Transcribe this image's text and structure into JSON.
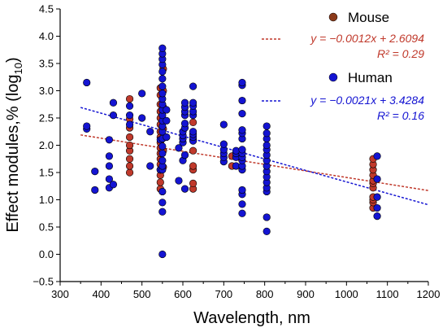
{
  "chart_data": {
    "type": "scatter",
    "xlabel": "Wavelength, nm",
    "ylabel_prefix": "Effect modules,% (log",
    "ylabel_sub": "10",
    "ylabel_suffix": ")",
    "xlim": [
      300,
      1200
    ],
    "ylim": [
      -0.5,
      4.5
    ],
    "xticks": [
      "300",
      "400",
      "500",
      "600",
      "700",
      "800",
      "900",
      "1000",
      "1100",
      "1200"
    ],
    "yticks": [
      "−0.5",
      "0.0",
      "0.5",
      "1.0",
      "1.5",
      "2.0",
      "2.5",
      "3.0",
      "3.5",
      "4.0",
      "4.5"
    ],
    "grid": false,
    "legend_position": "top-right",
    "series": [
      {
        "name": "Mouse",
        "color": "#c0392b",
        "trend": {
          "equation": "y = −0.0012x + 2.6094",
          "r2": "R² = 0.29",
          "slope": -0.0012,
          "intercept": 2.6094,
          "color": "#c0392b"
        },
        "points": [
          [
            470,
            1.5
          ],
          [
            470,
            1.62
          ],
          [
            470,
            1.75
          ],
          [
            470,
            1.9
          ],
          [
            470,
            2.0
          ],
          [
            470,
            2.15
          ],
          [
            470,
            2.32
          ],
          [
            470,
            2.48
          ],
          [
            470,
            2.85
          ],
          [
            545,
            1.2
          ],
          [
            545,
            1.32
          ],
          [
            545,
            1.45
          ],
          [
            545,
            1.55
          ],
          [
            545,
            1.65
          ],
          [
            545,
            1.75
          ],
          [
            545,
            1.85
          ],
          [
            545,
            1.95
          ],
          [
            545,
            2.05
          ],
          [
            545,
            2.15
          ],
          [
            545,
            2.25
          ],
          [
            545,
            2.38
          ],
          [
            545,
            2.5
          ],
          [
            545,
            2.62
          ],
          [
            545,
            2.75
          ],
          [
            545,
            2.92
          ],
          [
            545,
            3.05
          ],
          [
            552,
            1.6
          ],
          [
            552,
            1.9
          ],
          [
            552,
            2.3
          ],
          [
            552,
            2.7
          ],
          [
            552,
            3.0
          ],
          [
            552,
            3.4
          ],
          [
            625,
            1.2
          ],
          [
            625,
            1.3
          ],
          [
            625,
            1.55
          ],
          [
            625,
            1.62
          ],
          [
            625,
            1.9
          ],
          [
            625,
            2.1
          ],
          [
            625,
            2.42
          ],
          [
            720,
            1.62
          ],
          [
            720,
            1.8
          ],
          [
            1065,
            0.85
          ],
          [
            1065,
            0.95
          ],
          [
            1065,
            1.0
          ],
          [
            1065,
            1.05
          ],
          [
            1065,
            1.22
          ],
          [
            1065,
            1.3
          ],
          [
            1065,
            1.35
          ],
          [
            1065,
            1.45
          ],
          [
            1065,
            1.55
          ],
          [
            1065,
            1.65
          ],
          [
            1065,
            1.75
          ]
        ]
      },
      {
        "name": "Human",
        "color": "#1414d2",
        "trend": {
          "equation": "y = −0.0021x + 3.4284",
          "r2": "R² = 0.16",
          "slope": -0.0021,
          "intercept": 3.4284,
          "color": "#1414d2"
        },
        "points": [
          [
            365,
            2.3
          ],
          [
            365,
            2.35
          ],
          [
            365,
            3.15
          ],
          [
            385,
            1.18
          ],
          [
            385,
            1.52
          ],
          [
            420,
            1.22
          ],
          [
            420,
            1.38
          ],
          [
            420,
            1.62
          ],
          [
            420,
            1.8
          ],
          [
            420,
            2.1
          ],
          [
            430,
            1.28
          ],
          [
            430,
            2.55
          ],
          [
            430,
            2.78
          ],
          [
            470,
            2.38
          ],
          [
            470,
            2.55
          ],
          [
            470,
            2.72
          ],
          [
            500,
            2.5
          ],
          [
            500,
            2.95
          ],
          [
            520,
            1.62
          ],
          [
            520,
            2.25
          ],
          [
            545,
            1.55
          ],
          [
            545,
            2.1
          ],
          [
            550,
            0.0
          ],
          [
            550,
            0.78
          ],
          [
            550,
            0.95
          ],
          [
            550,
            1.15
          ],
          [
            550,
            1.55
          ],
          [
            550,
            1.62
          ],
          [
            550,
            1.72
          ],
          [
            550,
            1.85
          ],
          [
            550,
            1.98
          ],
          [
            550,
            2.12
          ],
          [
            550,
            2.25
          ],
          [
            550,
            2.35
          ],
          [
            550,
            2.45
          ],
          [
            550,
            2.55
          ],
          [
            550,
            2.65
          ],
          [
            550,
            2.75
          ],
          [
            550,
            2.85
          ],
          [
            550,
            2.95
          ],
          [
            550,
            3.08
          ],
          [
            550,
            3.22
          ],
          [
            550,
            3.35
          ],
          [
            550,
            3.48
          ],
          [
            550,
            3.58
          ],
          [
            550,
            3.68
          ],
          [
            550,
            3.78
          ],
          [
            560,
            2.15
          ],
          [
            560,
            2.45
          ],
          [
            560,
            2.65
          ],
          [
            590,
            1.35
          ],
          [
            590,
            1.95
          ],
          [
            600,
            1.72
          ],
          [
            600,
            2.05
          ],
          [
            600,
            2.12
          ],
          [
            600,
            2.18
          ],
          [
            600,
            2.25
          ],
          [
            605,
            1.2
          ],
          [
            605,
            1.82
          ],
          [
            605,
            2.32
          ],
          [
            605,
            2.4
          ],
          [
            605,
            2.55
          ],
          [
            605,
            2.62
          ],
          [
            605,
            2.7
          ],
          [
            605,
            2.78
          ],
          [
            625,
            2.08
          ],
          [
            625,
            2.15
          ],
          [
            625,
            2.2
          ],
          [
            625,
            2.25
          ],
          [
            625,
            2.55
          ],
          [
            625,
            2.62
          ],
          [
            625,
            2.72
          ],
          [
            625,
            2.78
          ],
          [
            625,
            3.08
          ],
          [
            700,
            1.7
          ],
          [
            700,
            1.78
          ],
          [
            700,
            1.85
          ],
          [
            700,
            1.92
          ],
          [
            700,
            2.02
          ],
          [
            700,
            2.38
          ],
          [
            730,
            1.62
          ],
          [
            730,
            1.78
          ],
          [
            730,
            1.85
          ],
          [
            730,
            1.9
          ],
          [
            745,
            0.75
          ],
          [
            745,
            0.92
          ],
          [
            745,
            1.1
          ],
          [
            745,
            1.18
          ],
          [
            745,
            1.55
          ],
          [
            745,
            1.62
          ],
          [
            745,
            1.72
          ],
          [
            745,
            1.78
          ],
          [
            745,
            1.85
          ],
          [
            745,
            1.92
          ],
          [
            745,
            2.12
          ],
          [
            745,
            2.22
          ],
          [
            745,
            2.28
          ],
          [
            745,
            2.58
          ],
          [
            745,
            2.82
          ],
          [
            745,
            3.1
          ],
          [
            745,
            3.15
          ],
          [
            805,
            0.42
          ],
          [
            805,
            0.68
          ],
          [
            805,
            1.15
          ],
          [
            805,
            1.22
          ],
          [
            805,
            1.32
          ],
          [
            805,
            1.42
          ],
          [
            805,
            1.52
          ],
          [
            805,
            1.62
          ],
          [
            805,
            1.72
          ],
          [
            805,
            1.82
          ],
          [
            805,
            1.92
          ],
          [
            805,
            2.0
          ],
          [
            805,
            2.12
          ],
          [
            805,
            2.22
          ],
          [
            805,
            2.35
          ],
          [
            1075,
            0.7
          ],
          [
            1075,
            0.85
          ],
          [
            1075,
            1.05
          ],
          [
            1075,
            1.38
          ],
          [
            1075,
            1.8
          ]
        ]
      }
    ]
  }
}
